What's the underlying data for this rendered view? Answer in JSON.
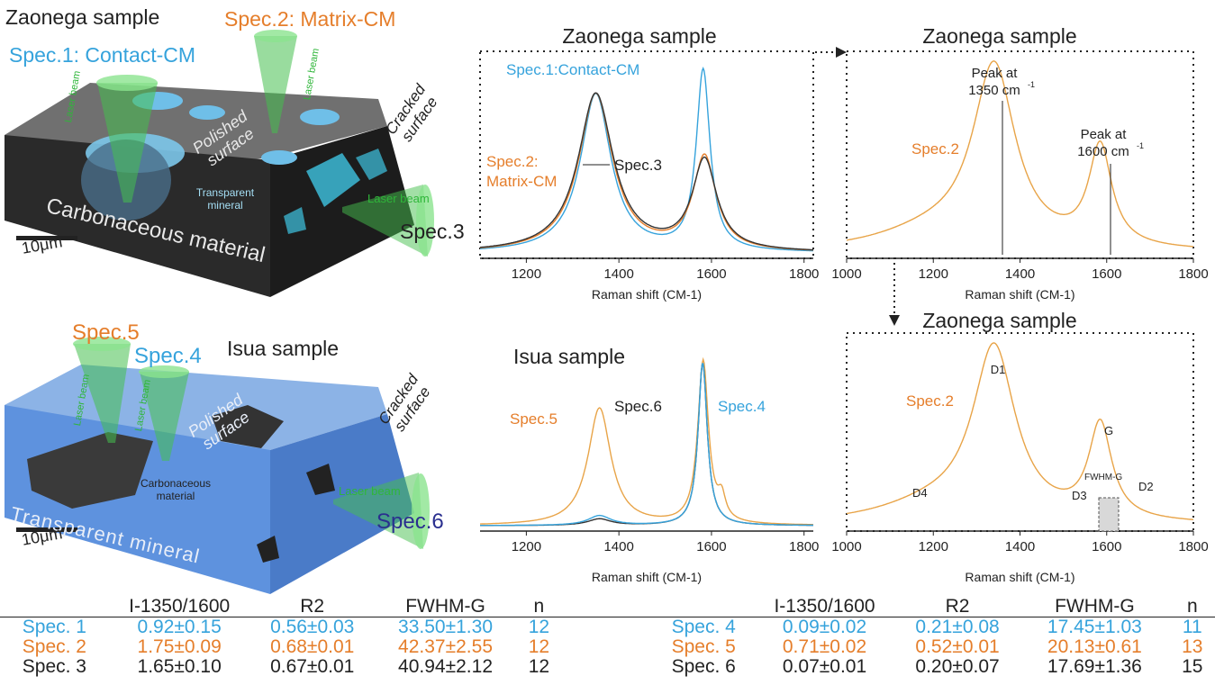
{
  "colors": {
    "blue": "#36a3dc",
    "orange": "#e57e2b",
    "black": "#222222",
    "navy": "#2a2f8f",
    "green": "#3aa840"
  },
  "zaonega_3d": {
    "title": "Zaonega sample",
    "spec1": "Spec.1: Contact-CM",
    "spec2": "Spec.2: Matrix-CM",
    "spec3": "Spec.3",
    "laser_beam": "Laser beam",
    "polished_surface": "Polished surface",
    "cracked_surface": "Cracked surface",
    "transparent_mineral": "Transparent mineral",
    "carbonaceous_material": "Carbonaceous material",
    "scale": "10μm"
  },
  "isua_3d": {
    "title": "Isua  sample",
    "spec4": "Spec.4",
    "spec5": "Spec.5",
    "spec6": "Spec.6",
    "laser_beam": "Laser beam",
    "polished_surface": "Polished surface",
    "cracked_surface": "Cracked surface",
    "carbonaceous_material": "Carbonaceous material",
    "transparent_mineral": "Transparent mineral",
    "scale": "10μm"
  },
  "chart_data": [
    {
      "id": "c1",
      "type": "line",
      "title": "Zaonega sample",
      "xlabel": "Raman shift (CM-1)",
      "xlim": [
        1100,
        1820
      ],
      "xticks": [
        1200,
        1400,
        1600,
        1800
      ],
      "annotations": [
        "Spec.1:Contact-CM",
        "Spec.2:",
        "Matrix-CM",
        "Spec.3"
      ],
      "series": [
        {
          "name": "Spec.1",
          "color": "#36a3dc",
          "peaks": [
            [
              1350,
              0.88,
              40
            ],
            [
              1582,
              1.0,
              18
            ]
          ]
        },
        {
          "name": "Spec.2",
          "color": "#e57e2b",
          "peaks": [
            [
              1350,
              0.88,
              44
            ],
            [
              1585,
              0.52,
              30
            ]
          ]
        },
        {
          "name": "Spec.3",
          "color": "#333333",
          "peaks": [
            [
              1350,
              0.88,
              46
            ],
            [
              1585,
              0.5,
              32
            ]
          ]
        }
      ]
    },
    {
      "id": "c2",
      "type": "line",
      "title": "Zaonega sample",
      "xlabel": "Raman shift (CM-1)",
      "xlim": [
        1000,
        1800
      ],
      "xticks": [
        1000,
        1200,
        1400,
        1600,
        1800
      ],
      "annotations": [
        "Peak at",
        "1350  cm",
        "-1",
        "Peak at",
        "1600  cm",
        "-1",
        "Spec.2"
      ],
      "series": [
        {
          "name": "Spec.2",
          "color": "#e8a448",
          "peaks": [
            [
              1340,
              1.0,
              60
            ],
            [
              1585,
              0.55,
              32
            ],
            [
              1200,
              0.1,
              160
            ]
          ]
        }
      ]
    },
    {
      "id": "c3",
      "type": "line",
      "title": "Isua  sample",
      "xlabel": "Raman shift (CM-1)",
      "xlim": [
        1100,
        1820
      ],
      "xticks": [
        1200,
        1400,
        1600,
        1800
      ],
      "annotations": [
        "Spec.5",
        "Spec.6",
        "Spec.4"
      ],
      "series": [
        {
          "name": "Spec.5",
          "color": "#e8a448",
          "peaks": [
            [
              1358,
              0.72,
              30
            ],
            [
              1582,
              1.0,
              14
            ],
            [
              1622,
              0.13,
              10
            ]
          ]
        },
        {
          "name": "Spec.6",
          "color": "#333333",
          "peaks": [
            [
              1358,
              0.04,
              30
            ],
            [
              1581,
              1.0,
              12
            ]
          ]
        },
        {
          "name": "Spec.4",
          "color": "#36a3dc",
          "peaks": [
            [
              1358,
              0.06,
              30
            ],
            [
              1581,
              1.0,
              12
            ]
          ]
        }
      ]
    },
    {
      "id": "c4",
      "type": "line",
      "title": "Zaonega sample",
      "xlabel": "Raman shift (CM-1)",
      "xlim": [
        1000,
        1800
      ],
      "xticks": [
        1000,
        1200,
        1400,
        1600,
        1800
      ],
      "annotations": [
        "D1",
        "G",
        "FWHM-G",
        "D2",
        "D3",
        "D4",
        "Spec.2"
      ],
      "series": [
        {
          "name": "Spec.2",
          "color": "#e8a448",
          "peaks": [
            [
              1340,
              1.0,
              60
            ],
            [
              1585,
              0.55,
              32
            ],
            [
              1200,
              0.1,
              160
            ]
          ]
        }
      ]
    }
  ],
  "table": {
    "headers": [
      "I-1350/1600",
      "R2",
      "FWHM-G",
      "n"
    ],
    "left": [
      {
        "spec": "Spec. 1",
        "i": "0.92±0.15",
        "r2": "0.56±0.03",
        "fwhm": "33.50±1.30",
        "n": "12"
      },
      {
        "spec": "Spec. 2",
        "i": "1.75±0.09",
        "r2": "0.68±0.01",
        "fwhm": "42.37±2.55",
        "n": "12"
      },
      {
        "spec": "Spec. 3",
        "i": "1.65±0.10",
        "r2": "0.67±0.01",
        "fwhm": "40.94±2.12",
        "n": "12"
      }
    ],
    "right": [
      {
        "spec": "Spec. 4",
        "i": "0.09±0.02",
        "r2": "0.21±0.08",
        "fwhm": "17.45±1.03",
        "n": "11"
      },
      {
        "spec": "Spec. 5",
        "i": "0.71±0.02",
        "r2": "0.52±0.01",
        "fwhm": "20.13±0.61",
        "n": "13"
      },
      {
        "spec": "Spec. 6",
        "i": "0.07±0.01",
        "r2": "0.20±0.07",
        "fwhm": "17.69±1.36",
        "n": "15"
      }
    ]
  }
}
